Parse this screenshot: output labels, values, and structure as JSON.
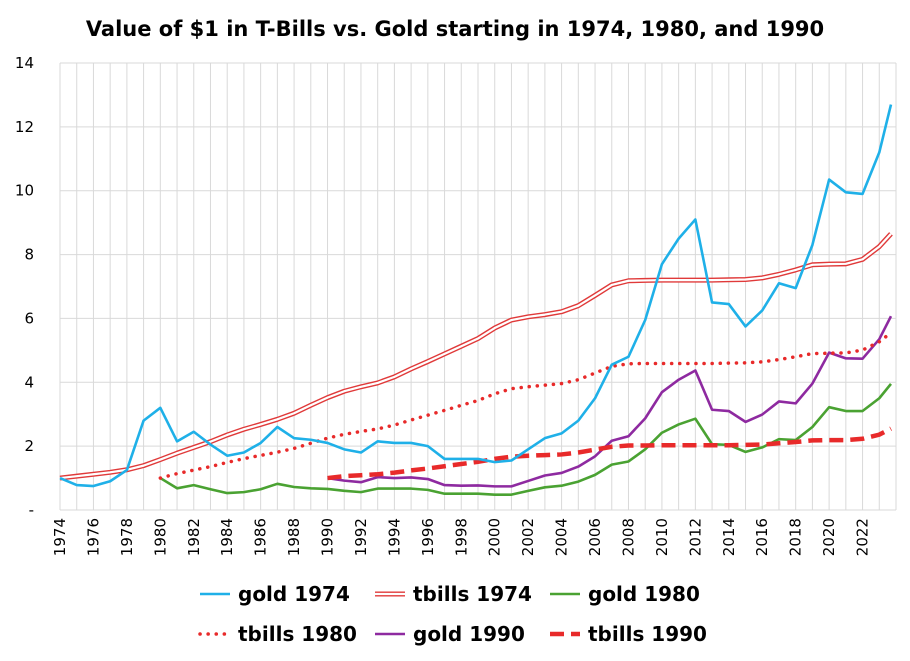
{
  "chart_data": {
    "type": "line",
    "title": "Value of $1 in T-Bills vs. Gold starting in 1974, 1980, and 1990",
    "xlabel": "",
    "ylabel": "",
    "ylim": [
      0,
      14
    ],
    "y_ticks": [
      "-",
      "2",
      "4",
      "6",
      "8",
      "10",
      "12",
      "14"
    ],
    "x_ticks": [
      "1974",
      "1976",
      "1978",
      "1980",
      "1982",
      "1984",
      "1986",
      "1988",
      "1990",
      "1992",
      "1994",
      "1996",
      "1998",
      "2000",
      "2002",
      "2004",
      "2006",
      "2008",
      "2010",
      "2012",
      "2014",
      "2016",
      "2018",
      "2020",
      "2022"
    ],
    "grid": true,
    "legend_position": "bottom",
    "colors": {
      "gold_1974": "#1fb0e8",
      "tbills_1974": "#e03a3a",
      "gold_1980": "#4aa232",
      "tbills_1980": "#e82a2a",
      "gold_1990": "#8e2aa0",
      "tbills_1990": "#e82a2a"
    },
    "series": [
      {
        "name": "gold 1974",
        "style": "solid",
        "points": [
          [
            1974,
            1.0
          ],
          [
            1975,
            0.78
          ],
          [
            1976,
            0.75
          ],
          [
            1977,
            0.9
          ],
          [
            1978,
            1.25
          ],
          [
            1979,
            2.8
          ],
          [
            1980,
            3.2
          ],
          [
            1981,
            2.15
          ],
          [
            1982,
            2.45
          ],
          [
            1983,
            2.05
          ],
          [
            1984,
            1.7
          ],
          [
            1985,
            1.8
          ],
          [
            1986,
            2.1
          ],
          [
            1987,
            2.6
          ],
          [
            1988,
            2.25
          ],
          [
            1989,
            2.2
          ],
          [
            1990,
            2.1
          ],
          [
            1991,
            1.9
          ],
          [
            1992,
            1.8
          ],
          [
            1993,
            2.15
          ],
          [
            1994,
            2.1
          ],
          [
            1995,
            2.1
          ],
          [
            1996,
            2.0
          ],
          [
            1997,
            1.6
          ],
          [
            1998,
            1.6
          ],
          [
            1999,
            1.6
          ],
          [
            2000,
            1.5
          ],
          [
            2001,
            1.55
          ],
          [
            2002,
            1.9
          ],
          [
            2003,
            2.25
          ],
          [
            2004,
            2.4
          ],
          [
            2005,
            2.8
          ],
          [
            2006,
            3.5
          ],
          [
            2007,
            4.55
          ],
          [
            2008,
            4.8
          ],
          [
            2009,
            5.95
          ],
          [
            2010,
            7.7
          ],
          [
            2011,
            8.5
          ],
          [
            2012,
            9.1
          ],
          [
            2013,
            6.5
          ],
          [
            2014,
            6.45
          ],
          [
            2015,
            5.75
          ],
          [
            2016,
            6.25
          ],
          [
            2017,
            7.1
          ],
          [
            2018,
            6.95
          ],
          [
            2019,
            8.3
          ],
          [
            2020,
            10.35
          ],
          [
            2021,
            9.95
          ],
          [
            2022,
            9.9
          ],
          [
            2023,
            11.2
          ],
          [
            2023.7,
            12.7
          ]
        ]
      },
      {
        "name": "tbills 1974",
        "style": "double",
        "points": [
          [
            1974,
            1.0
          ],
          [
            1975,
            1.06
          ],
          [
            1976,
            1.12
          ],
          [
            1977,
            1.18
          ],
          [
            1978,
            1.26
          ],
          [
            1979,
            1.39
          ],
          [
            1980,
            1.58
          ],
          [
            1981,
            1.78
          ],
          [
            1982,
            1.96
          ],
          [
            1983,
            2.14
          ],
          [
            1984,
            2.35
          ],
          [
            1985,
            2.53
          ],
          [
            1986,
            2.68
          ],
          [
            1987,
            2.84
          ],
          [
            1988,
            3.03
          ],
          [
            1989,
            3.28
          ],
          [
            1990,
            3.52
          ],
          [
            1991,
            3.72
          ],
          [
            1992,
            3.86
          ],
          [
            1993,
            3.98
          ],
          [
            1994,
            4.17
          ],
          [
            1995,
            4.42
          ],
          [
            1996,
            4.65
          ],
          [
            1997,
            4.89
          ],
          [
            1998,
            5.13
          ],
          [
            1999,
            5.37
          ],
          [
            2000,
            5.7
          ],
          [
            2001,
            5.95
          ],
          [
            2002,
            6.05
          ],
          [
            2003,
            6.12
          ],
          [
            2004,
            6.21
          ],
          [
            2005,
            6.4
          ],
          [
            2006,
            6.72
          ],
          [
            2007,
            7.05
          ],
          [
            2008,
            7.18
          ],
          [
            2009,
            7.19
          ],
          [
            2010,
            7.2
          ],
          [
            2011,
            7.2
          ],
          [
            2012,
            7.2
          ],
          [
            2013,
            7.2
          ],
          [
            2014,
            7.21
          ],
          [
            2015,
            7.22
          ],
          [
            2016,
            7.27
          ],
          [
            2017,
            7.38
          ],
          [
            2018,
            7.52
          ],
          [
            2019,
            7.68
          ],
          [
            2020,
            7.7
          ],
          [
            2021,
            7.71
          ],
          [
            2022,
            7.85
          ],
          [
            2023,
            8.25
          ],
          [
            2023.7,
            8.65
          ]
        ]
      },
      {
        "name": "gold 1980",
        "style": "solid",
        "points": [
          [
            1980,
            1.0
          ],
          [
            1981,
            0.68
          ],
          [
            1982,
            0.78
          ],
          [
            1983,
            0.65
          ],
          [
            1984,
            0.53
          ],
          [
            1985,
            0.56
          ],
          [
            1986,
            0.65
          ],
          [
            1987,
            0.82
          ],
          [
            1988,
            0.72
          ],
          [
            1989,
            0.68
          ],
          [
            1990,
            0.66
          ],
          [
            1991,
            0.6
          ],
          [
            1992,
            0.56
          ],
          [
            1993,
            0.67
          ],
          [
            1994,
            0.67
          ],
          [
            1995,
            0.67
          ],
          [
            1996,
            0.63
          ],
          [
            1997,
            0.51
          ],
          [
            1998,
            0.51
          ],
          [
            1999,
            0.51
          ],
          [
            2000,
            0.48
          ],
          [
            2001,
            0.48
          ],
          [
            2002,
            0.6
          ],
          [
            2003,
            0.71
          ],
          [
            2004,
            0.76
          ],
          [
            2005,
            0.89
          ],
          [
            2006,
            1.1
          ],
          [
            2007,
            1.42
          ],
          [
            2008,
            1.52
          ],
          [
            2009,
            1.9
          ],
          [
            2010,
            2.42
          ],
          [
            2011,
            2.68
          ],
          [
            2012,
            2.86
          ],
          [
            2013,
            2.06
          ],
          [
            2014,
            2.04
          ],
          [
            2015,
            1.82
          ],
          [
            2016,
            1.96
          ],
          [
            2017,
            2.22
          ],
          [
            2018,
            2.19
          ],
          [
            2019,
            2.6
          ],
          [
            2020,
            3.22
          ],
          [
            2021,
            3.1
          ],
          [
            2022,
            3.1
          ],
          [
            2023,
            3.5
          ],
          [
            2023.7,
            3.95
          ]
        ]
      },
      {
        "name": "tbills 1980",
        "style": "dotted",
        "points": [
          [
            1980,
            1.0
          ],
          [
            1981,
            1.14
          ],
          [
            1982,
            1.25
          ],
          [
            1983,
            1.36
          ],
          [
            1984,
            1.49
          ],
          [
            1985,
            1.61
          ],
          [
            1986,
            1.71
          ],
          [
            1987,
            1.81
          ],
          [
            1988,
            1.93
          ],
          [
            1989,
            2.09
          ],
          [
            1990,
            2.25
          ],
          [
            1991,
            2.37
          ],
          [
            1992,
            2.46
          ],
          [
            1993,
            2.54
          ],
          [
            1994,
            2.66
          ],
          [
            1995,
            2.82
          ],
          [
            1996,
            2.97
          ],
          [
            1997,
            3.12
          ],
          [
            1998,
            3.28
          ],
          [
            1999,
            3.43
          ],
          [
            2000,
            3.64
          ],
          [
            2001,
            3.8
          ],
          [
            2002,
            3.86
          ],
          [
            2003,
            3.91
          ],
          [
            2004,
            3.96
          ],
          [
            2005,
            4.08
          ],
          [
            2006,
            4.29
          ],
          [
            2007,
            4.5
          ],
          [
            2008,
            4.58
          ],
          [
            2009,
            4.59
          ],
          [
            2010,
            4.59
          ],
          [
            2011,
            4.59
          ],
          [
            2012,
            4.59
          ],
          [
            2013,
            4.59
          ],
          [
            2014,
            4.6
          ],
          [
            2015,
            4.61
          ],
          [
            2016,
            4.64
          ],
          [
            2017,
            4.71
          ],
          [
            2018,
            4.8
          ],
          [
            2019,
            4.9
          ],
          [
            2020,
            4.91
          ],
          [
            2021,
            4.92
          ],
          [
            2022,
            5.01
          ],
          [
            2023,
            5.27
          ],
          [
            2023.7,
            5.55
          ]
        ]
      },
      {
        "name": "gold 1990",
        "style": "solid",
        "points": [
          [
            1990,
            1.0
          ],
          [
            1991,
            0.92
          ],
          [
            1992,
            0.87
          ],
          [
            1993,
            1.03
          ],
          [
            1994,
            1.0
          ],
          [
            1995,
            1.02
          ],
          [
            1996,
            0.97
          ],
          [
            1997,
            0.78
          ],
          [
            1998,
            0.76
          ],
          [
            1999,
            0.77
          ],
          [
            2000,
            0.74
          ],
          [
            2001,
            0.74
          ],
          [
            2002,
            0.91
          ],
          [
            2003,
            1.08
          ],
          [
            2004,
            1.16
          ],
          [
            2005,
            1.36
          ],
          [
            2006,
            1.68
          ],
          [
            2007,
            2.17
          ],
          [
            2008,
            2.31
          ],
          [
            2009,
            2.87
          ],
          [
            2010,
            3.69
          ],
          [
            2011,
            4.08
          ],
          [
            2012,
            4.37
          ],
          [
            2013,
            3.14
          ],
          [
            2014,
            3.1
          ],
          [
            2015,
            2.76
          ],
          [
            2016,
            2.99
          ],
          [
            2017,
            3.4
          ],
          [
            2018,
            3.34
          ],
          [
            2019,
            3.96
          ],
          [
            2020,
            4.93
          ],
          [
            2021,
            4.75
          ],
          [
            2022,
            4.74
          ],
          [
            2023,
            5.35
          ],
          [
            2023.7,
            6.07
          ]
        ]
      },
      {
        "name": "tbills 1990",
        "style": "dashed",
        "points": [
          [
            1990,
            1.0
          ],
          [
            1991,
            1.06
          ],
          [
            1992,
            1.09
          ],
          [
            1993,
            1.12
          ],
          [
            1994,
            1.17
          ],
          [
            1995,
            1.24
          ],
          [
            1996,
            1.3
          ],
          [
            1997,
            1.37
          ],
          [
            1998,
            1.44
          ],
          [
            1999,
            1.51
          ],
          [
            2000,
            1.6
          ],
          [
            2001,
            1.67
          ],
          [
            2002,
            1.7
          ],
          [
            2003,
            1.72
          ],
          [
            2004,
            1.74
          ],
          [
            2005,
            1.8
          ],
          [
            2006,
            1.89
          ],
          [
            2007,
            1.98
          ],
          [
            2008,
            2.02
          ],
          [
            2009,
            2.02
          ],
          [
            2010,
            2.03
          ],
          [
            2011,
            2.03
          ],
          [
            2012,
            2.03
          ],
          [
            2013,
            2.03
          ],
          [
            2014,
            2.03
          ],
          [
            2015,
            2.04
          ],
          [
            2016,
            2.05
          ],
          [
            2017,
            2.09
          ],
          [
            2018,
            2.13
          ],
          [
            2019,
            2.18
          ],
          [
            2020,
            2.19
          ],
          [
            2021,
            2.19
          ],
          [
            2022,
            2.23
          ],
          [
            2023,
            2.36
          ],
          [
            2023.7,
            2.55
          ]
        ]
      }
    ]
  }
}
